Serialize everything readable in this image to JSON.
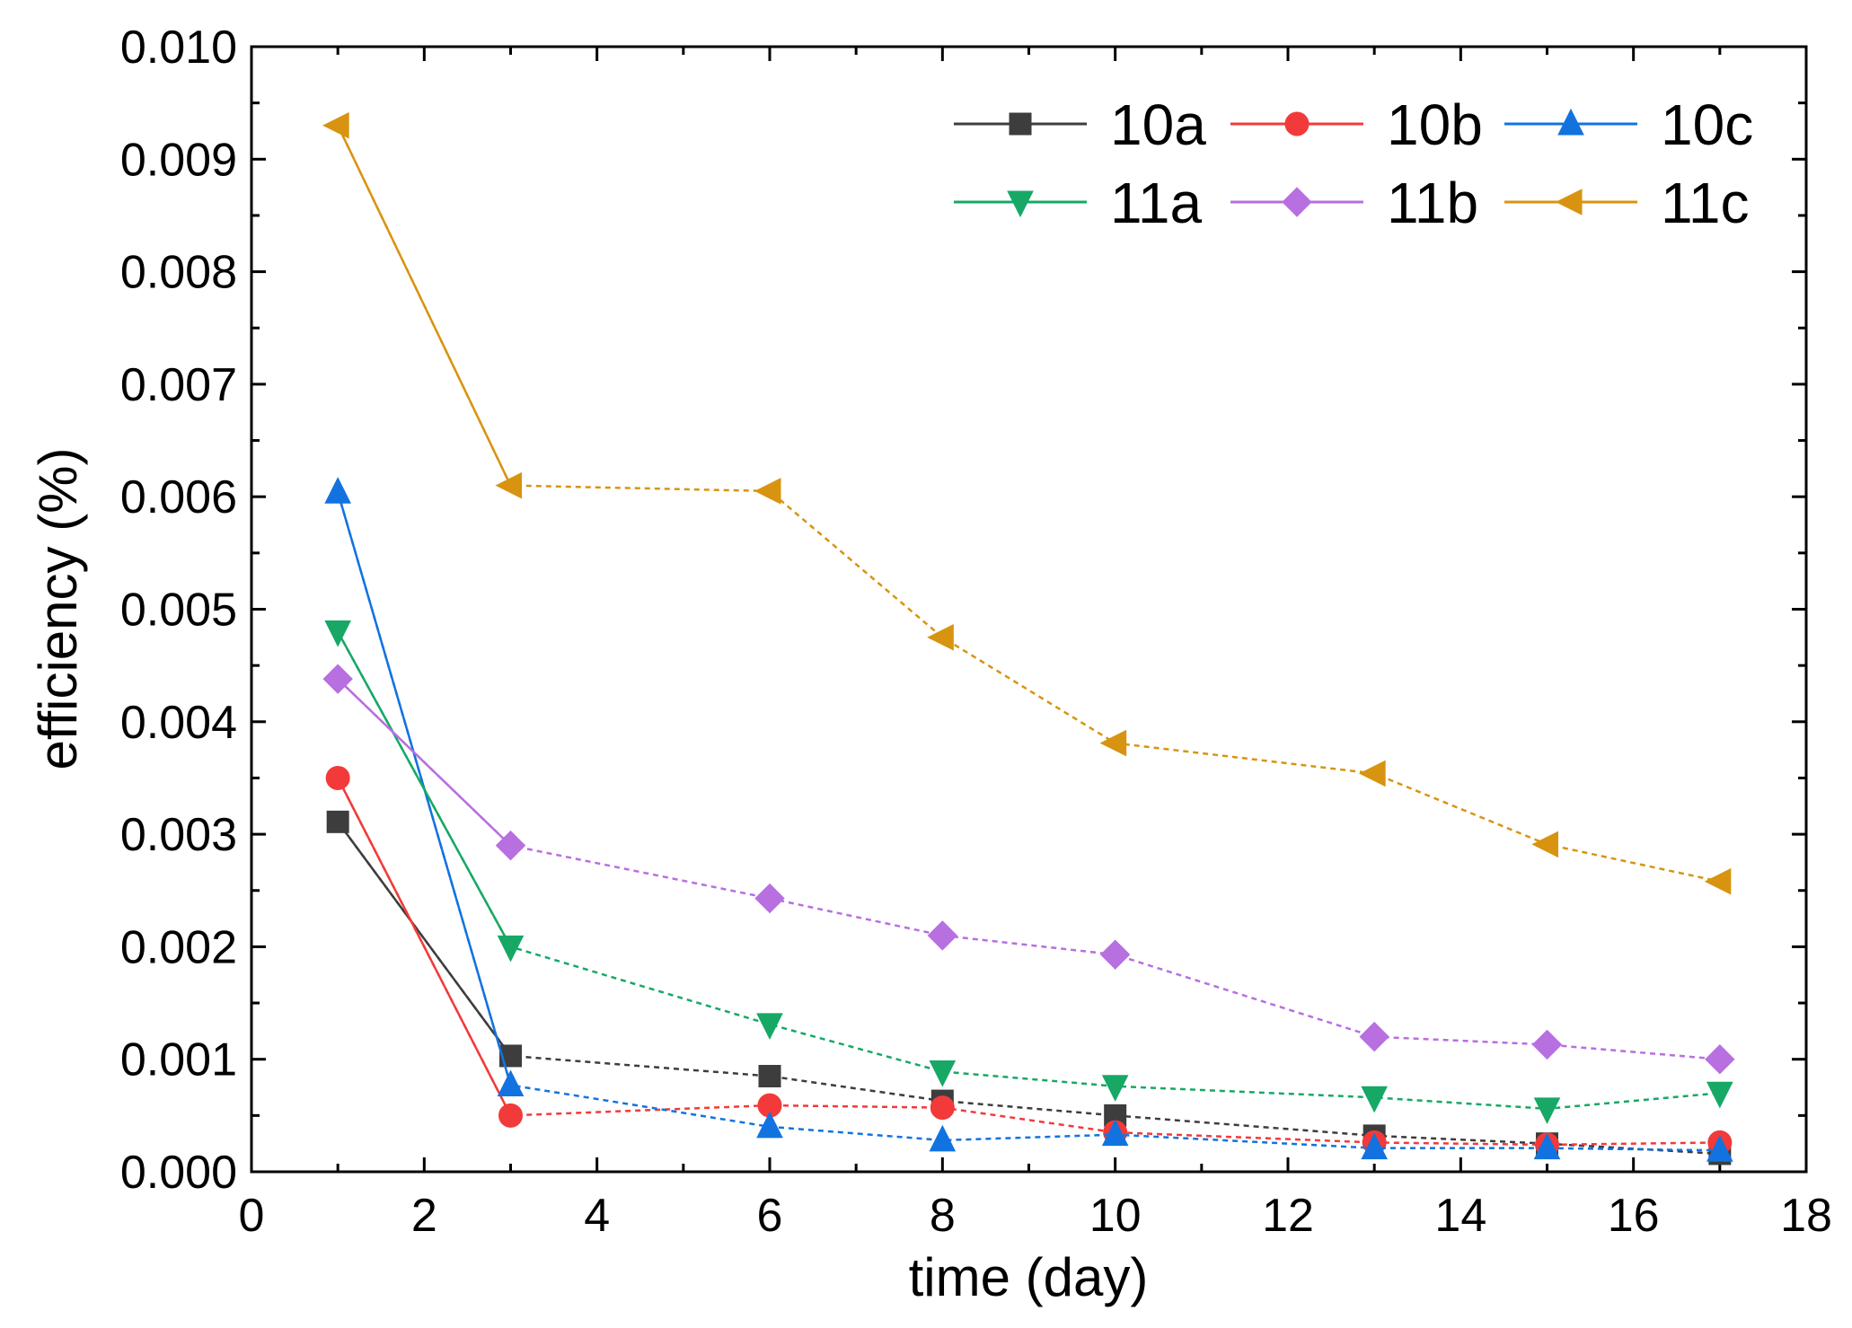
{
  "chart_data": {
    "type": "line",
    "title": "",
    "xlabel": "time (day)",
    "ylabel": "efficiency (%)",
    "xlim": [
      0,
      18
    ],
    "ylim": [
      0.0,
      0.01
    ],
    "x_ticks": [
      0,
      2,
      4,
      6,
      8,
      10,
      12,
      14,
      16,
      18
    ],
    "x_tick_labels": [
      "0",
      "2",
      "4",
      "6",
      "8",
      "10",
      "12",
      "14",
      "16",
      "18"
    ],
    "y_ticks": [
      0.0,
      0.001,
      0.002,
      0.003,
      0.004,
      0.005,
      0.006,
      0.007,
      0.008,
      0.009,
      0.01
    ],
    "y_tick_labels": [
      "0.000",
      "0.001",
      "0.002",
      "0.003",
      "0.004",
      "0.005",
      "0.006",
      "0.007",
      "0.008",
      "0.009",
      "0.010"
    ],
    "grid": false,
    "legend_position": "top-right",
    "x": [
      1,
      3,
      6,
      8,
      10,
      13,
      15,
      17
    ],
    "series": [
      {
        "name": "10a",
        "marker": "square",
        "color": "#3d3d3d",
        "values": [
          0.00311,
          0.00103,
          0.00085,
          0.00063,
          0.0005,
          0.00032,
          0.00025,
          0.00016
        ]
      },
      {
        "name": "10b",
        "marker": "circle",
        "color": "#f23a3a",
        "values": [
          0.0035,
          0.0005,
          0.00059,
          0.00057,
          0.00035,
          0.00026,
          0.00024,
          0.00026
        ]
      },
      {
        "name": "10c",
        "marker": "triangle-up",
        "color": "#1273e0",
        "values": [
          0.00604,
          0.00077,
          0.0004,
          0.00028,
          0.00033,
          0.00021,
          0.00021,
          0.00019
        ]
      },
      {
        "name": "11a",
        "marker": "triangle-down",
        "color": "#17a866",
        "values": [
          0.0048,
          0.002,
          0.00131,
          0.00089,
          0.00076,
          0.00066,
          0.00056,
          0.0007
        ]
      },
      {
        "name": "11b",
        "marker": "diamond",
        "color": "#b86fe0",
        "values": [
          0.00438,
          0.0029,
          0.00243,
          0.0021,
          0.00193,
          0.0012,
          0.00113,
          0.001
        ]
      },
      {
        "name": "11c",
        "marker": "triangle-left",
        "color": "#d89410",
        "values": [
          0.0093,
          0.0061,
          0.00605,
          0.00475,
          0.00381,
          0.00354,
          0.00291,
          0.00258
        ]
      }
    ]
  }
}
